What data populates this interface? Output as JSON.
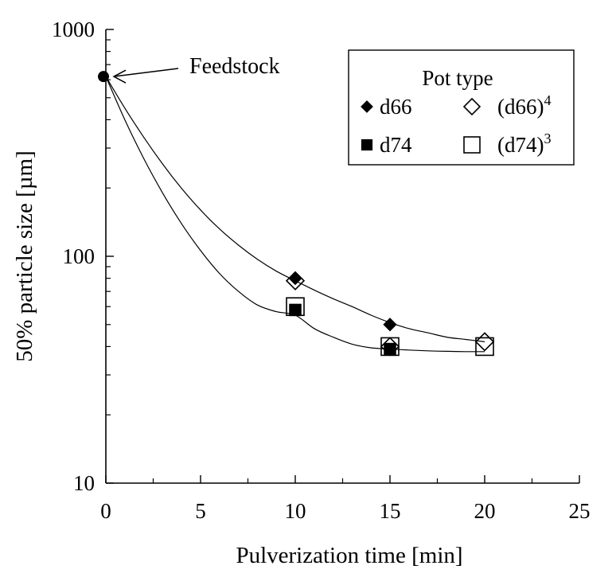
{
  "chart_data": {
    "type": "scatter",
    "title": "",
    "xlabel": "Pulverization time [min]",
    "ylabel": "50% particle size [µm]",
    "xlim": [
      0,
      25
    ],
    "ylim": [
      10,
      1000
    ],
    "yscale": "log",
    "xticks": [
      0,
      5,
      10,
      15,
      20,
      25
    ],
    "yticks": [
      10,
      100,
      1000
    ],
    "grid": false,
    "legend": {
      "title": "Pot type",
      "placement": "top-right",
      "entries": [
        {
          "label": "d66",
          "marker": "filled-diamond",
          "sup": ""
        },
        {
          "label": "(d66)",
          "marker": "open-diamond",
          "sup": "4"
        },
        {
          "label": "d74",
          "marker": "filled-square",
          "sup": ""
        },
        {
          "label": "(d74)",
          "marker": "open-square",
          "sup": "3"
        }
      ]
    },
    "series": [
      {
        "name": "d66",
        "marker": "filled-diamond",
        "x": [
          10,
          15
        ],
        "y": [
          80,
          50
        ]
      },
      {
        "name": "(d66)4",
        "marker": "open-diamond",
        "x": [
          10,
          15,
          20
        ],
        "y": [
          78,
          40,
          42
        ]
      },
      {
        "name": "d74",
        "marker": "filled-square",
        "x": [
          10,
          15
        ],
        "y": [
          58,
          39
        ]
      },
      {
        "name": "(d74)3",
        "marker": "open-square",
        "x": [
          10,
          15,
          20
        ],
        "y": [
          60,
          40,
          40
        ]
      }
    ],
    "feedstock": {
      "label": "Feedstock",
      "x": 0,
      "y": 620
    },
    "fit_curves": [
      {
        "name": "d66 fit",
        "x": [
          0,
          1,
          2,
          3,
          4,
          5,
          6,
          7,
          8,
          9,
          10,
          11,
          12,
          13,
          14,
          15,
          16,
          17,
          18,
          19,
          20
        ],
        "y": [
          620,
          450,
          335,
          255,
          199,
          160,
          132,
          112,
          97,
          86,
          78,
          71,
          65,
          60,
          55,
          51,
          48,
          46,
          44,
          43,
          42
        ]
      },
      {
        "name": "d74 fit",
        "x": [
          0,
          1,
          2,
          3,
          4,
          5,
          6,
          7,
          8,
          9,
          10,
          11,
          12,
          13,
          14,
          15,
          16,
          17,
          18,
          19,
          20
        ],
        "y": [
          620,
          400,
          270,
          190,
          139,
          106,
          84,
          70,
          61,
          57,
          55,
          48,
          44,
          41,
          39.5,
          39,
          38.6,
          38.3,
          38.1,
          38.0,
          38.0
        ]
      }
    ]
  }
}
